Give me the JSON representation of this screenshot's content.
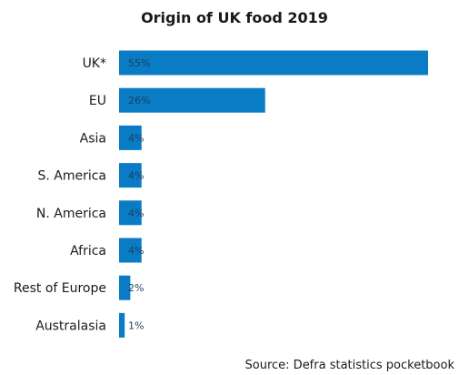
{
  "chart_data": {
    "type": "bar",
    "orientation": "horizontal",
    "title": "Origin of UK food 2019",
    "categories": [
      "UK*",
      "EU",
      "Asia",
      "S. America",
      "N. America",
      "Africa",
      "Rest of Europe",
      "Australasia"
    ],
    "values": [
      55,
      26,
      4,
      4,
      4,
      4,
      2,
      1
    ],
    "value_labels": [
      "55%",
      "26%",
      "4%",
      "4%",
      "4%",
      "4%",
      "2%",
      "1%"
    ],
    "unit": "%",
    "xlim": [
      0,
      55
    ],
    "grid": false,
    "bar_color": "#0a7cc5"
  },
  "source": "Source: Defra statistics pocketbook"
}
